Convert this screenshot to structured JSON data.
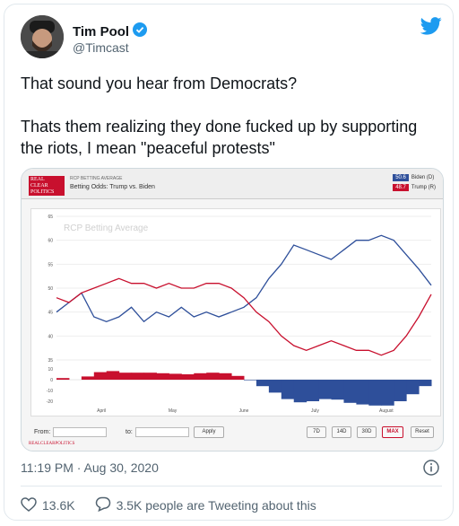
{
  "user": {
    "name": "Tim Pool",
    "handle": "@Timcast"
  },
  "tweet": {
    "line1": "That sound you hear from Democrats?",
    "line2": "Thats them realizing they done fucked up by supporting the riots, I mean \"peaceful protests\""
  },
  "chart_header": {
    "logo_text": "REAL CLEAR POLITICS",
    "subtitle": "RCP BETTING AVERAGE",
    "title": "Betting Odds: Trump vs. Biden",
    "legend": [
      {
        "value": "50.6",
        "name": "Biden (D)",
        "color": "#2e4f9a"
      },
      {
        "value": "48.7",
        "name": "Trump (R)",
        "color": "#c8102e"
      }
    ],
    "watermark": "RCP Betting Average"
  },
  "chart_data": {
    "type": "line",
    "title": "Betting Odds: Trump vs. Biden",
    "ylim": [
      35,
      65
    ],
    "yticks": [
      35,
      40,
      45,
      50,
      55,
      60,
      65
    ],
    "spread_ticks": [
      10,
      0,
      -10,
      -20
    ],
    "x_labels": [
      "April",
      "May",
      "June",
      "July",
      "August"
    ],
    "series": [
      {
        "name": "Biden (D)",
        "color": "#2e4f9a",
        "values": [
          45,
          47,
          49,
          44,
          43,
          44,
          46,
          43,
          45,
          44,
          46,
          44,
          45,
          44,
          45,
          46,
          48,
          52,
          55,
          59,
          58,
          57,
          56,
          58,
          60,
          60,
          61,
          60,
          57,
          54,
          50.6
        ]
      },
      {
        "name": "Trump (R)",
        "color": "#c8102e",
        "values": [
          48,
          47,
          49,
          50,
          51,
          52,
          51,
          51,
          50,
          51,
          50,
          50,
          51,
          51,
          50,
          48,
          45,
          43,
          40,
          38,
          37,
          38,
          39,
          38,
          37,
          37,
          36,
          37,
          40,
          44,
          48.7
        ]
      }
    ],
    "grid": true
  },
  "chart_footer": {
    "from_label": "From:",
    "to_label": "to:",
    "apply": "Apply",
    "ranges": [
      "7D",
      "14D",
      "30D",
      "MAX"
    ],
    "reset": "Reset",
    "credit": "REALCLEARPOLITICS"
  },
  "meta": {
    "timestamp": "11:19 PM · Aug 30, 2020"
  },
  "actions": {
    "likes": "13.6K",
    "tweeting": "3.5K people are Tweeting about this"
  },
  "colors": {
    "twitter_blue": "#1d9bf0",
    "biden": "#2e4f9a",
    "trump": "#c8102e"
  }
}
